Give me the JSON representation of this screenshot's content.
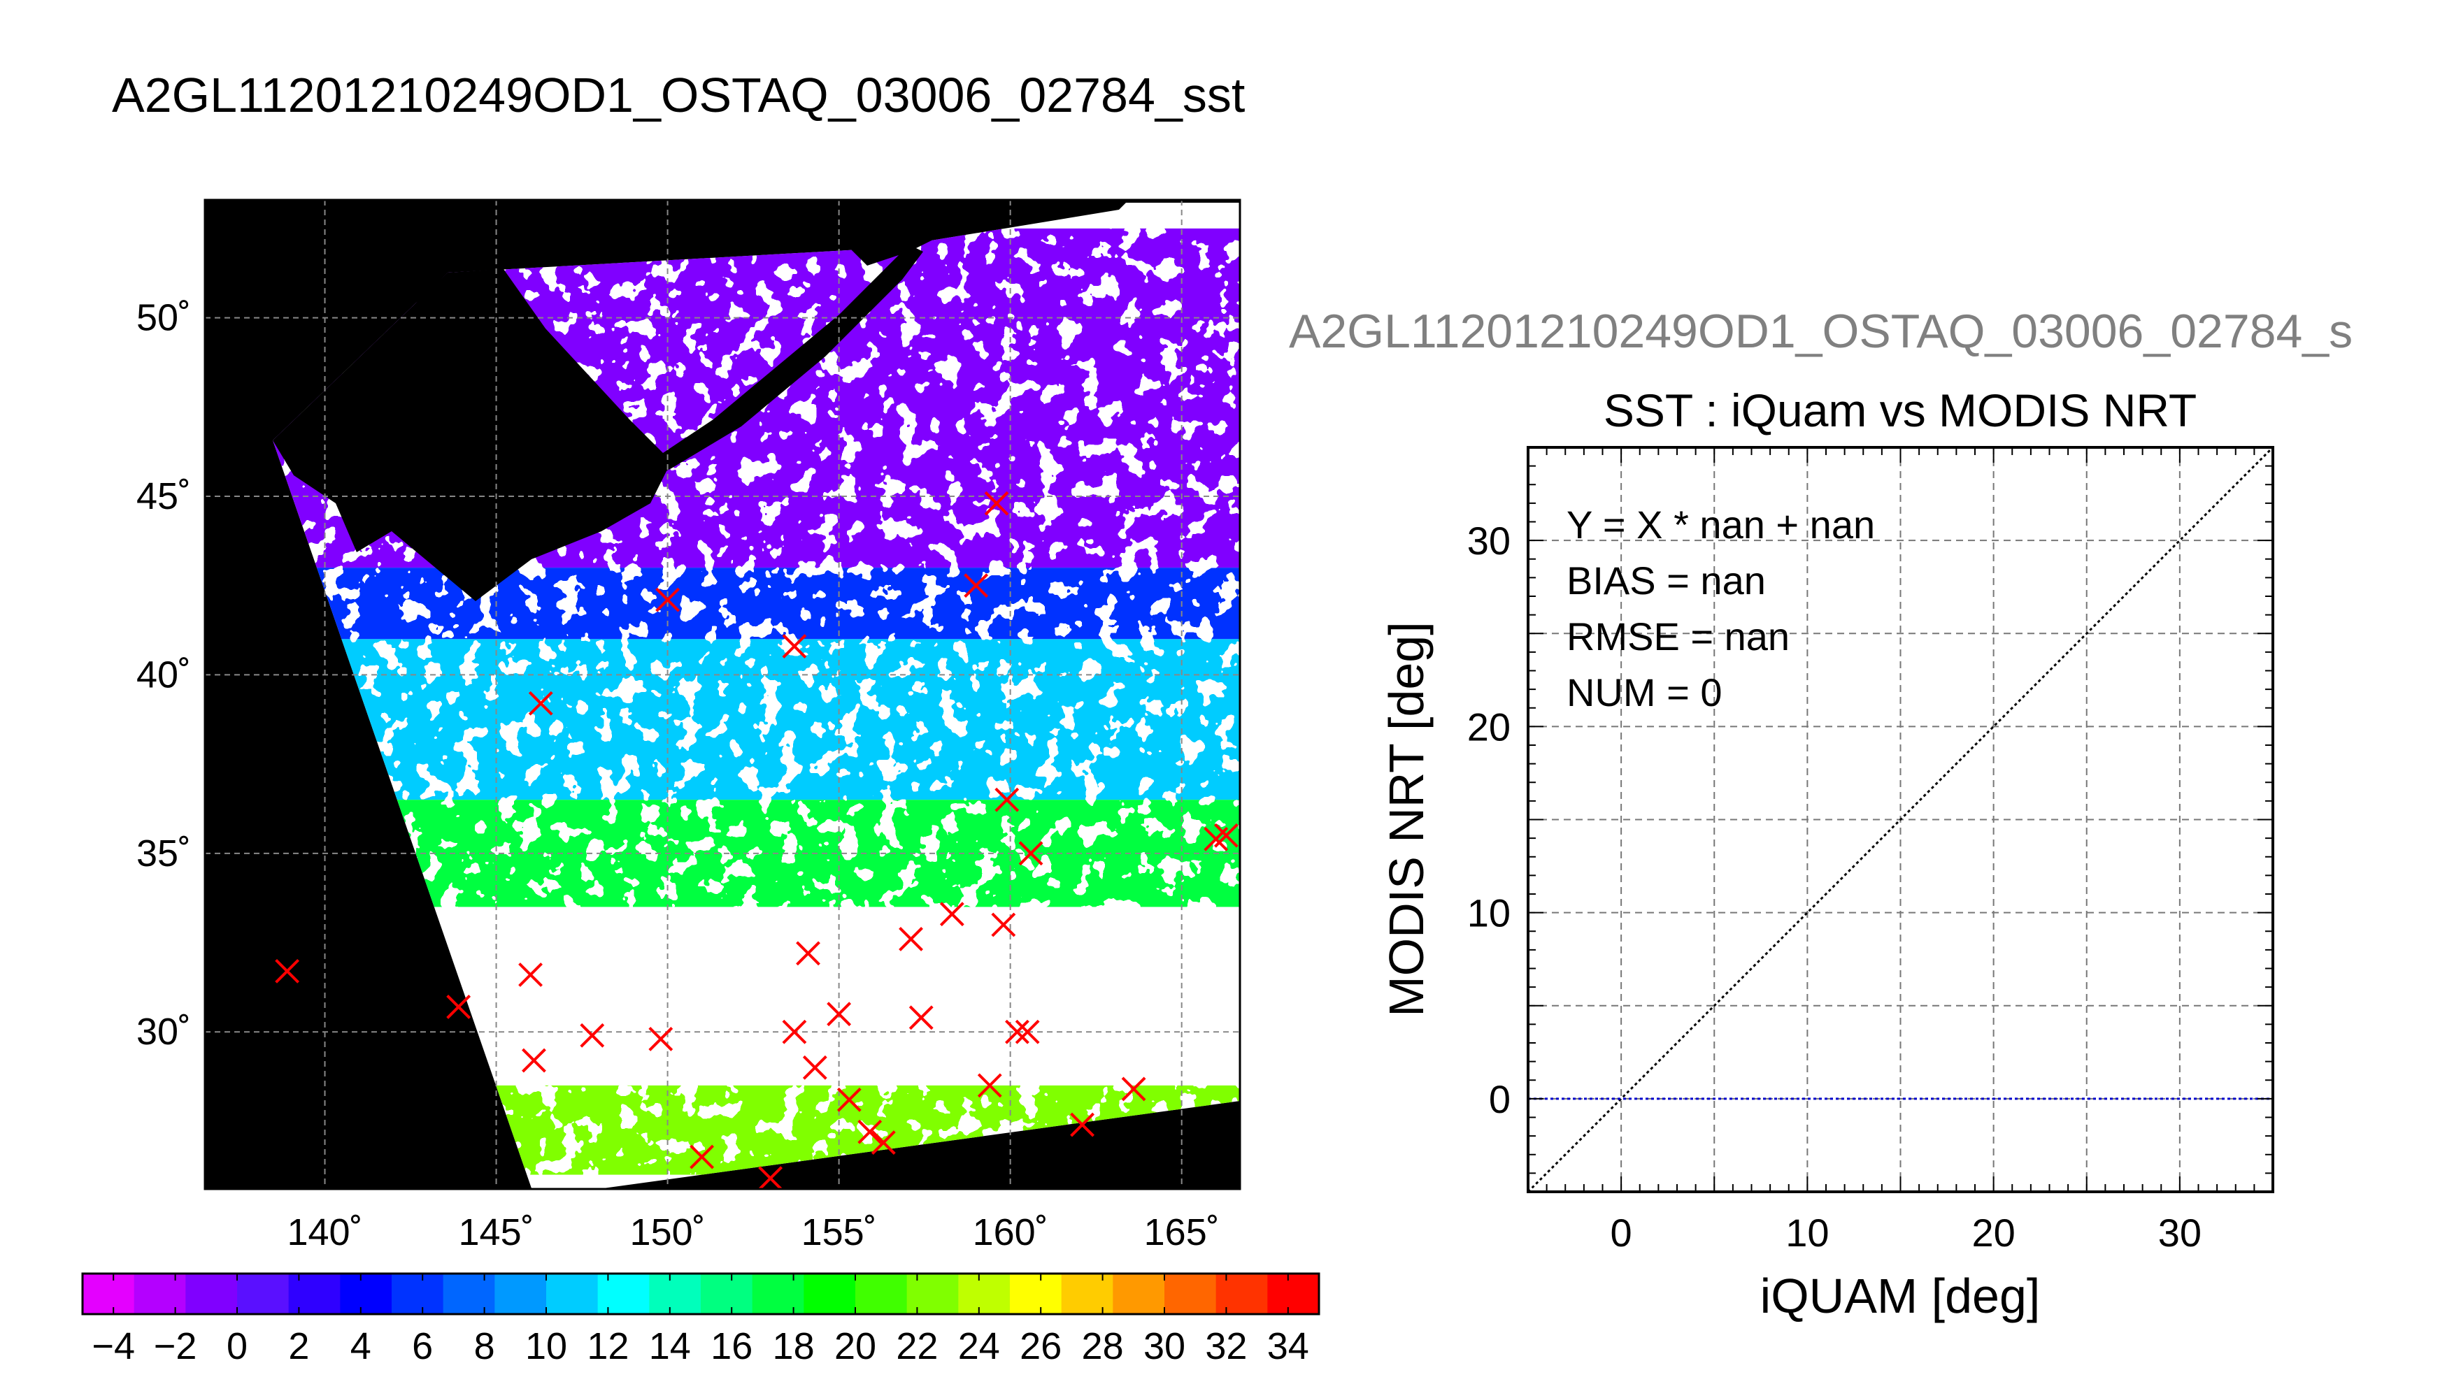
{
  "figure_title": "A2GL11201210249OD1_OSTAQ_03006_02784_sst",
  "chart_data": [
    {
      "type": "map",
      "title": "A2GL11201210249OD1_OSTAQ_03006_02784_sst",
      "xlim": [
        136.5,
        166.7
      ],
      "ylim": [
        25.6,
        53.3
      ],
      "x_ticks": [
        140,
        145,
        150,
        155,
        160,
        165
      ],
      "y_ticks": [
        30,
        35,
        40,
        45,
        50
      ],
      "x_tick_labels": [
        "140˚",
        "145˚",
        "150˚",
        "155˚",
        "160˚",
        "165˚"
      ],
      "y_tick_labels": [
        "30˚",
        "35˚",
        "40˚",
        "45˚",
        "50˚"
      ],
      "grid": true,
      "land_color": "#000000",
      "no_data_color": "#ffffff",
      "marker_color": "#ff0000",
      "sst_regions": [
        {
          "lat_range": [
            43.0,
            52.5
          ],
          "sst": -1
        },
        {
          "lat_range": [
            41.0,
            43.0
          ],
          "sst": 5
        },
        {
          "lat_range": [
            36.5,
            41.0
          ],
          "sst": 11
        },
        {
          "lat_range": [
            33.5,
            36.5
          ],
          "sst": 17
        },
        {
          "lat_range": [
            26.0,
            28.5
          ],
          "sst": 23
        }
      ],
      "markers": [
        {
          "lon": 138.9,
          "lat": 31.7
        },
        {
          "lon": 143.9,
          "lat": 30.7
        },
        {
          "lon": 146.0,
          "lat": 31.6
        },
        {
          "lon": 146.1,
          "lat": 29.2
        },
        {
          "lon": 147.8,
          "lat": 29.9
        },
        {
          "lon": 149.8,
          "lat": 29.8
        },
        {
          "lon": 146.3,
          "lat": 39.2
        },
        {
          "lon": 150.0,
          "lat": 42.1
        },
        {
          "lon": 153.7,
          "lat": 40.8
        },
        {
          "lon": 153.7,
          "lat": 30.0
        },
        {
          "lon": 154.1,
          "lat": 32.2
        },
        {
          "lon": 154.3,
          "lat": 29.0
        },
        {
          "lon": 155.0,
          "lat": 30.5
        },
        {
          "lon": 155.3,
          "lat": 28.1
        },
        {
          "lon": 155.9,
          "lat": 27.2
        },
        {
          "lon": 156.3,
          "lat": 26.9
        },
        {
          "lon": 157.1,
          "lat": 32.6
        },
        {
          "lon": 157.4,
          "lat": 30.4
        },
        {
          "lon": 158.3,
          "lat": 33.3
        },
        {
          "lon": 159.0,
          "lat": 42.5
        },
        {
          "lon": 159.4,
          "lat": 28.5
        },
        {
          "lon": 159.6,
          "lat": 44.8
        },
        {
          "lon": 159.9,
          "lat": 36.5
        },
        {
          "lon": 159.8,
          "lat": 33.0
        },
        {
          "lon": 160.2,
          "lat": 30.0
        },
        {
          "lon": 160.5,
          "lat": 30.0
        },
        {
          "lon": 160.6,
          "lat": 35.0
        },
        {
          "lon": 162.1,
          "lat": 27.4
        },
        {
          "lon": 163.6,
          "lat": 28.4
        },
        {
          "lon": 166.0,
          "lat": 35.4
        },
        {
          "lon": 166.3,
          "lat": 35.5
        },
        {
          "lon": 151.0,
          "lat": 26.5
        },
        {
          "lon": 153.0,
          "lat": 25.9
        }
      ],
      "colorbar": {
        "min": -5,
        "max": 35,
        "step": 2,
        "tick_labels": [
          "−4",
          "−2",
          "0",
          "2",
          "4",
          "6",
          "8",
          "10",
          "12",
          "14",
          "16",
          "18",
          "20",
          "22",
          "24",
          "26",
          "28",
          "30",
          "32",
          "34"
        ],
        "colors": [
          "#e400ff",
          "#b400ff",
          "#8000ff",
          "#5a10ff",
          "#2f00ff",
          "#0000ff",
          "#0033ff",
          "#0066ff",
          "#0099ff",
          "#00ccff",
          "#00ffff",
          "#00ffbb",
          "#00ff80",
          "#00ff40",
          "#00ff00",
          "#40ff00",
          "#80ff00",
          "#bfff00",
          "#ffff00",
          "#ffcc00",
          "#ff9900",
          "#ff6600",
          "#ff3300",
          "#ff0000"
        ]
      }
    },
    {
      "type": "scatter",
      "header": "A2GL11201210249OD1_OSTAQ_03006_02784_s",
      "title": "SST : iQuam vs MODIS NRT",
      "xlabel": "iQUAM [deg]",
      "ylabel": "MODIS NRT [deg]",
      "xlim": [
        -5,
        35
      ],
      "ylim": [
        -5,
        35
      ],
      "x_ticks": [
        0,
        10,
        20,
        30
      ],
      "y_ticks": [
        0,
        10,
        20,
        30
      ],
      "grid": true,
      "stats": [
        "Y = X * nan + nan",
        "BIAS = nan",
        "RMSE = nan",
        "NUM = 0"
      ],
      "points": [],
      "lines": [
        {
          "name": "",
          "style": "dotted",
          "color": "#000000",
          "x": [
            -5,
            35
          ],
          "y": [
            -5,
            35
          ]
        },
        {
          "name": "",
          "style": "dotted",
          "color": "#0000cc",
          "x": [
            -5,
            35
          ],
          "y": [
            0,
            0
          ]
        }
      ]
    }
  ]
}
